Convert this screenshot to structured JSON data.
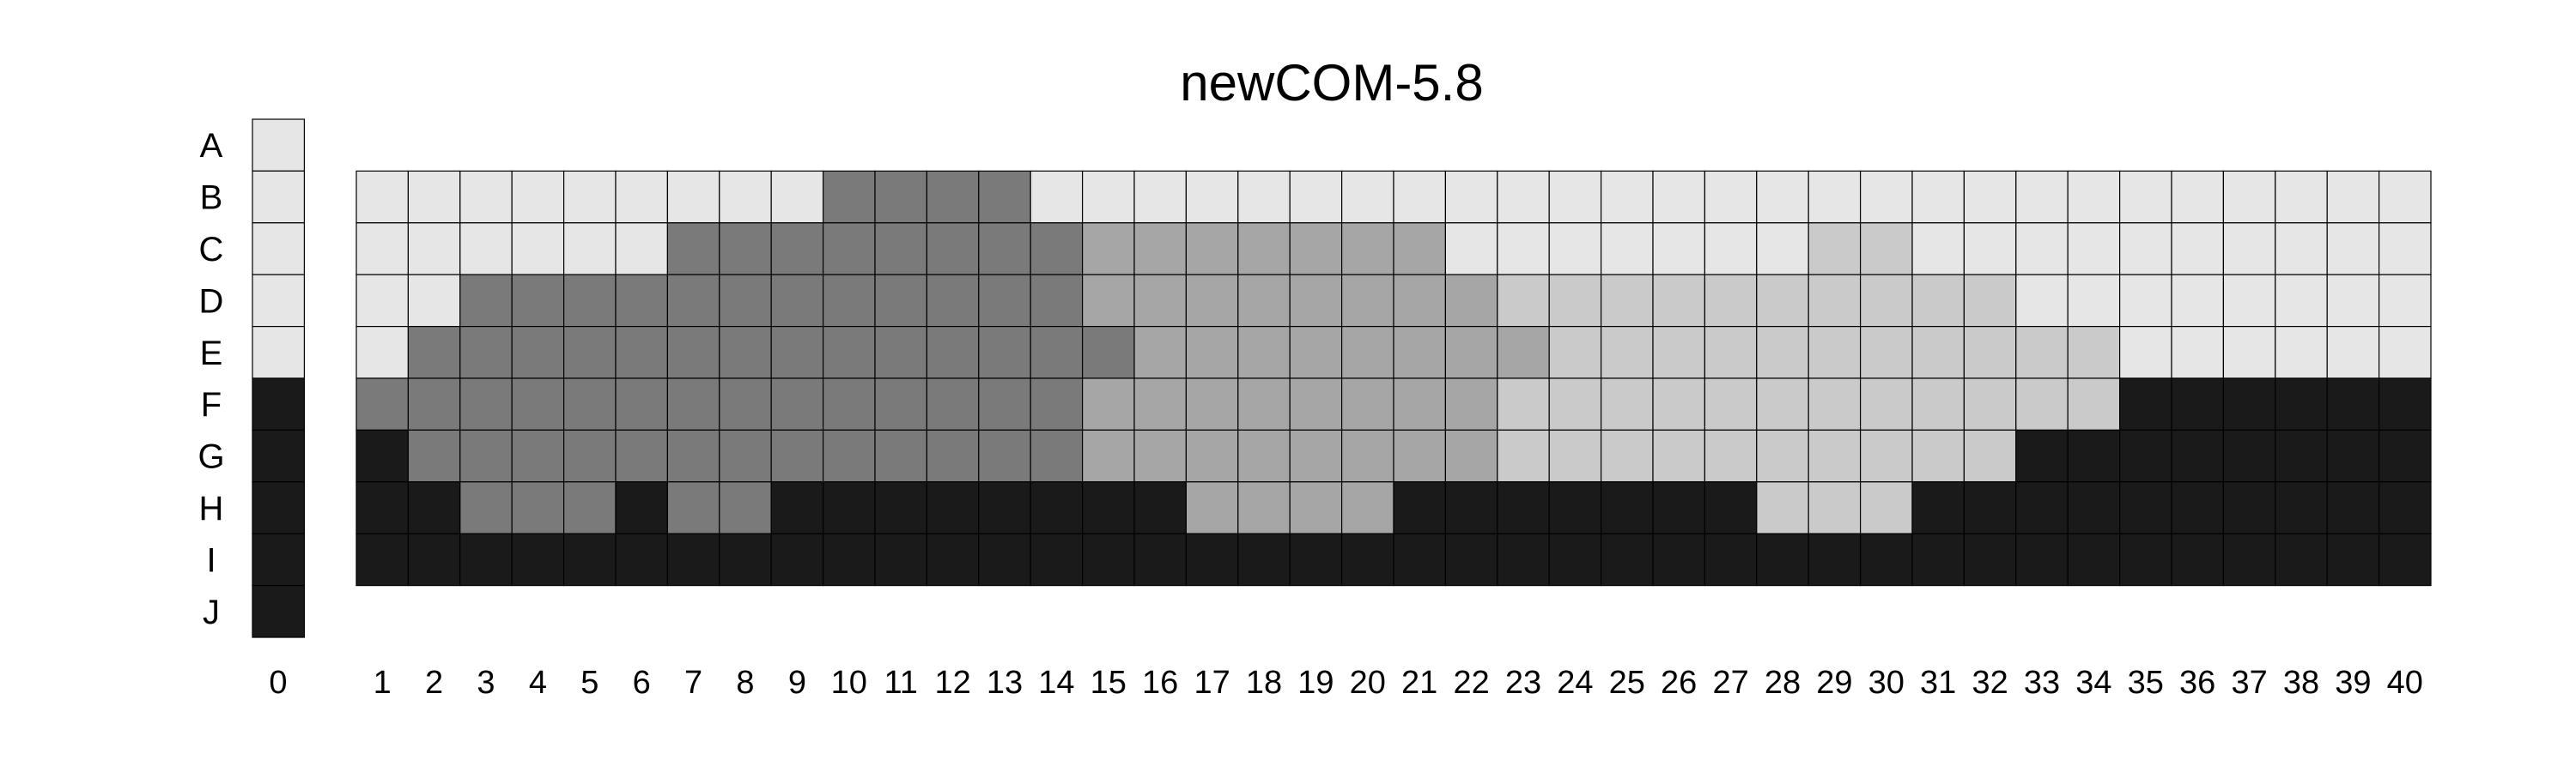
{
  "chart_data": {
    "type": "heatmap",
    "title": "newCOM-5.8",
    "rows": [
      "A",
      "B",
      "C",
      "D",
      "E",
      "F",
      "G",
      "H",
      "I",
      "J"
    ],
    "index_column": {
      "label": "0",
      "levels": [
        1,
        1,
        1,
        1,
        1,
        5,
        5,
        5,
        5,
        5
      ]
    },
    "columns": [
      "1",
      "2",
      "3",
      "4",
      "5",
      "6",
      "7",
      "8",
      "9",
      "10",
      "11",
      "12",
      "13",
      "14",
      "15",
      "16",
      "17",
      "18",
      "19",
      "20",
      "21",
      "22",
      "23",
      "24",
      "25",
      "26",
      "27",
      "28",
      "29",
      "30",
      "31",
      "32",
      "33",
      "34",
      "35",
      "36",
      "37",
      "38",
      "39",
      "40"
    ],
    "grid_rows": [
      "B",
      "C",
      "D",
      "E",
      "F",
      "G",
      "H",
      "I"
    ],
    "grid_levels": [
      [
        1,
        1,
        1,
        1,
        1,
        1,
        1,
        1,
        1,
        4,
        4,
        4,
        4,
        1,
        1,
        1,
        1,
        1,
        1,
        1,
        1,
        1,
        1,
        1,
        1,
        1,
        1,
        1,
        1,
        1,
        1,
        1,
        1,
        1,
        1,
        1,
        1,
        1,
        1,
        1
      ],
      [
        1,
        1,
        1,
        1,
        1,
        1,
        4,
        4,
        4,
        4,
        4,
        4,
        4,
        4,
        3,
        3,
        3,
        3,
        3,
        3,
        3,
        1,
        1,
        1,
        1,
        1,
        1,
        1,
        2,
        2,
        1,
        1,
        1,
        1,
        1,
        1,
        1,
        1,
        1,
        1
      ],
      [
        1,
        1,
        4,
        4,
        4,
        4,
        4,
        4,
        4,
        4,
        4,
        4,
        4,
        4,
        3,
        3,
        3,
        3,
        3,
        3,
        3,
        3,
        2,
        2,
        2,
        2,
        2,
        2,
        2,
        2,
        2,
        2,
        1,
        1,
        1,
        1,
        1,
        1,
        1,
        1
      ],
      [
        1,
        4,
        4,
        4,
        4,
        4,
        4,
        4,
        4,
        4,
        4,
        4,
        4,
        4,
        4,
        3,
        3,
        3,
        3,
        3,
        3,
        3,
        3,
        2,
        2,
        2,
        2,
        2,
        2,
        2,
        2,
        2,
        2,
        2,
        1,
        1,
        1,
        1,
        1,
        1
      ],
      [
        4,
        4,
        4,
        4,
        4,
        4,
        4,
        4,
        4,
        4,
        4,
        4,
        4,
        4,
        3,
        3,
        3,
        3,
        3,
        3,
        3,
        3,
        2,
        2,
        2,
        2,
        2,
        2,
        2,
        2,
        2,
        2,
        2,
        2,
        5,
        5,
        5,
        5,
        5,
        5
      ],
      [
        5,
        4,
        4,
        4,
        4,
        4,
        4,
        4,
        4,
        4,
        4,
        4,
        4,
        4,
        3,
        3,
        3,
        3,
        3,
        3,
        3,
        3,
        2,
        2,
        2,
        2,
        2,
        2,
        2,
        2,
        2,
        2,
        5,
        5,
        5,
        5,
        5,
        5,
        5,
        5
      ],
      [
        5,
        5,
        4,
        4,
        4,
        5,
        4,
        4,
        5,
        5,
        5,
        5,
        5,
        5,
        5,
        5,
        3,
        3,
        3,
        3,
        5,
        5,
        5,
        5,
        5,
        5,
        5,
        2,
        2,
        2,
        5,
        5,
        5,
        5,
        5,
        5,
        5,
        5,
        5,
        5
      ],
      [
        5,
        5,
        5,
        5,
        5,
        5,
        5,
        5,
        5,
        5,
        5,
        5,
        5,
        5,
        5,
        5,
        5,
        5,
        5,
        5,
        5,
        5,
        5,
        5,
        5,
        5,
        5,
        5,
        5,
        5,
        5,
        5,
        5,
        5,
        5,
        5,
        5,
        5,
        5,
        5
      ]
    ],
    "level_colors": {
      "1": "#e6e6e6",
      "2": "#cacaca",
      "3": "#a6a6a6",
      "4": "#7a7a7a",
      "5": "#1a1a1a"
    }
  }
}
